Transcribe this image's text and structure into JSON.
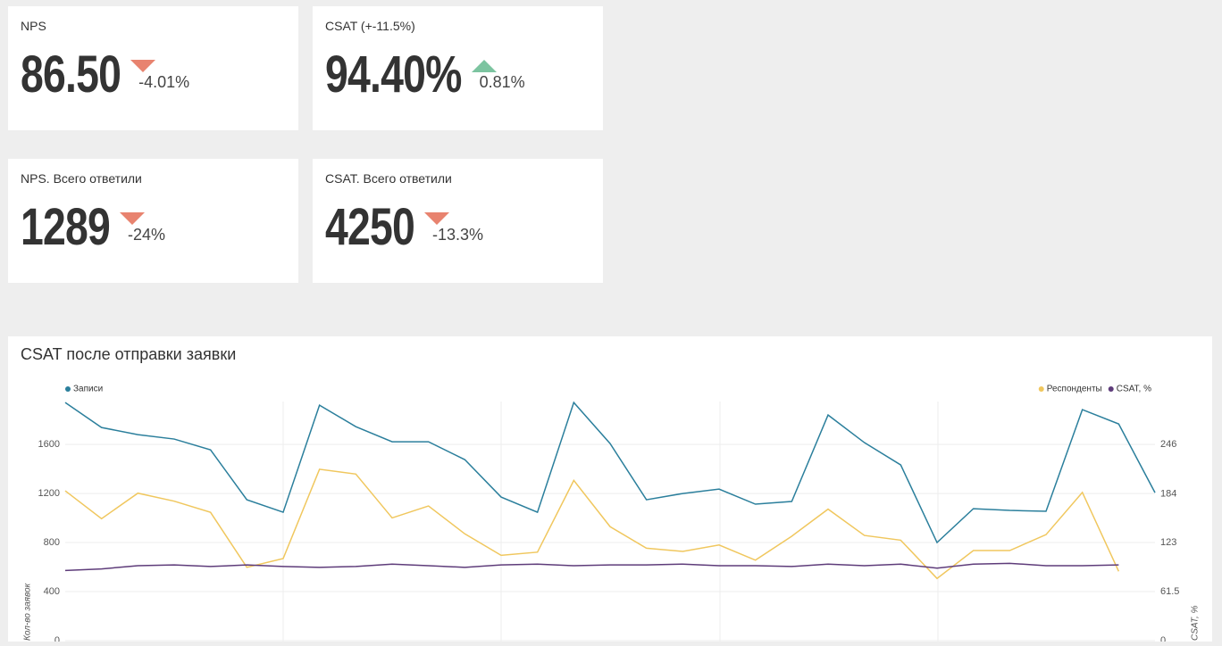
{
  "cards": [
    {
      "title": "NPS",
      "value": "86.50",
      "delta": "-4.01%",
      "trend": "down"
    },
    {
      "title": "CSAT (+-11.5%)",
      "value": "94.40%",
      "delta": "0.81%",
      "trend": "up"
    },
    {
      "title": "NPS. Всего ответили",
      "value": "1289",
      "delta": "-24%",
      "trend": "down"
    },
    {
      "title": "CSAT. Всего ответили",
      "value": "4250",
      "delta": "-13.3%",
      "trend": "down"
    }
  ],
  "trend_colors": {
    "up": "#7cc4a0",
    "down": "#e8836f"
  },
  "chart_data": {
    "type": "line",
    "title": "CSAT после отправки заявки",
    "ylabel": "Кол-во заявок",
    "y2label": "CSAT, %",
    "categories": [
      null,
      null,
      null,
      null,
      null,
      null,
      null,
      null,
      null,
      null,
      null,
      null,
      null,
      null,
      null,
      null,
      null,
      null,
      null,
      null,
      null,
      null,
      null,
      null,
      null,
      null,
      null,
      null,
      null,
      null,
      null
    ],
    "ylim": [
      0,
      1950
    ],
    "yticks": [
      0,
      400,
      800,
      1200,
      1600
    ],
    "y2lim": [
      0,
      300
    ],
    "y2ticks": [
      0,
      61.5,
      123,
      184,
      246
    ],
    "grid": true,
    "series": [
      {
        "name": "Записи",
        "color": "#2b7f9c",
        "values": [
          1942,
          1738,
          1680,
          1644,
          1556,
          1149,
          1047,
          1920,
          1745,
          1622,
          1622,
          1476,
          1171,
          1047,
          1942,
          1607,
          1149,
          1200,
          1236,
          1113,
          1135,
          1840,
          1615,
          1433,
          800,
          1076,
          1062,
          1055,
          1884,
          1767,
          1207
        ]
      },
      {
        "name": "Респонденты",
        "color": "#f0c75e",
        "axis": "y2",
        "values": [
          188,
          153,
          185,
          175,
          161,
          92,
          103,
          215,
          209,
          154,
          169,
          134,
          107,
          111,
          201,
          143,
          116,
          112,
          120,
          101,
          131,
          165,
          132,
          126,
          78,
          113,
          113,
          133,
          186,
          87,
          null
        ]
      },
      {
        "name": "CSAT, %",
        "color": "#5e3c7a",
        "axis": "y2",
        "values": [
          88,
          90,
          94,
          95,
          93,
          95,
          93,
          92,
          93,
          96,
          94,
          92,
          95,
          96,
          94,
          95,
          95,
          96,
          94,
          94,
          93,
          96,
          94,
          96,
          91,
          96,
          97,
          94,
          94,
          95,
          null
        ]
      }
    ]
  }
}
